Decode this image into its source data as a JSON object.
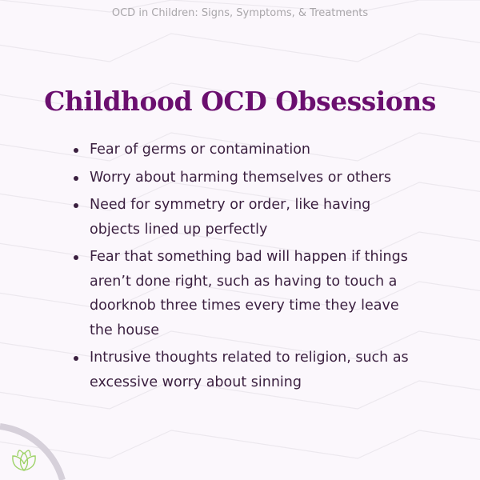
{
  "header": {
    "subtitle": "OCD in Children: Signs, Symptoms, & Treatments"
  },
  "title": "Childhood OCD Obsessions",
  "items": [
    "Fear of germs or contamination",
    "Worry about harming themselves or others",
    "Need for symmetry or order, like having objects lined up perfectly",
    "Fear that something bad will happen if things aren’t done right, such as having to touch a doorknob three times every time they leave the house",
    "Intrusive thoughts related to religion, such as excessive worry about sinning"
  ],
  "colors": {
    "title": "#6b0f6f",
    "text": "#3a1f3f",
    "background": "#fbf7fc",
    "logo": "#9fd36a"
  },
  "logo_icon": "lotus-icon"
}
